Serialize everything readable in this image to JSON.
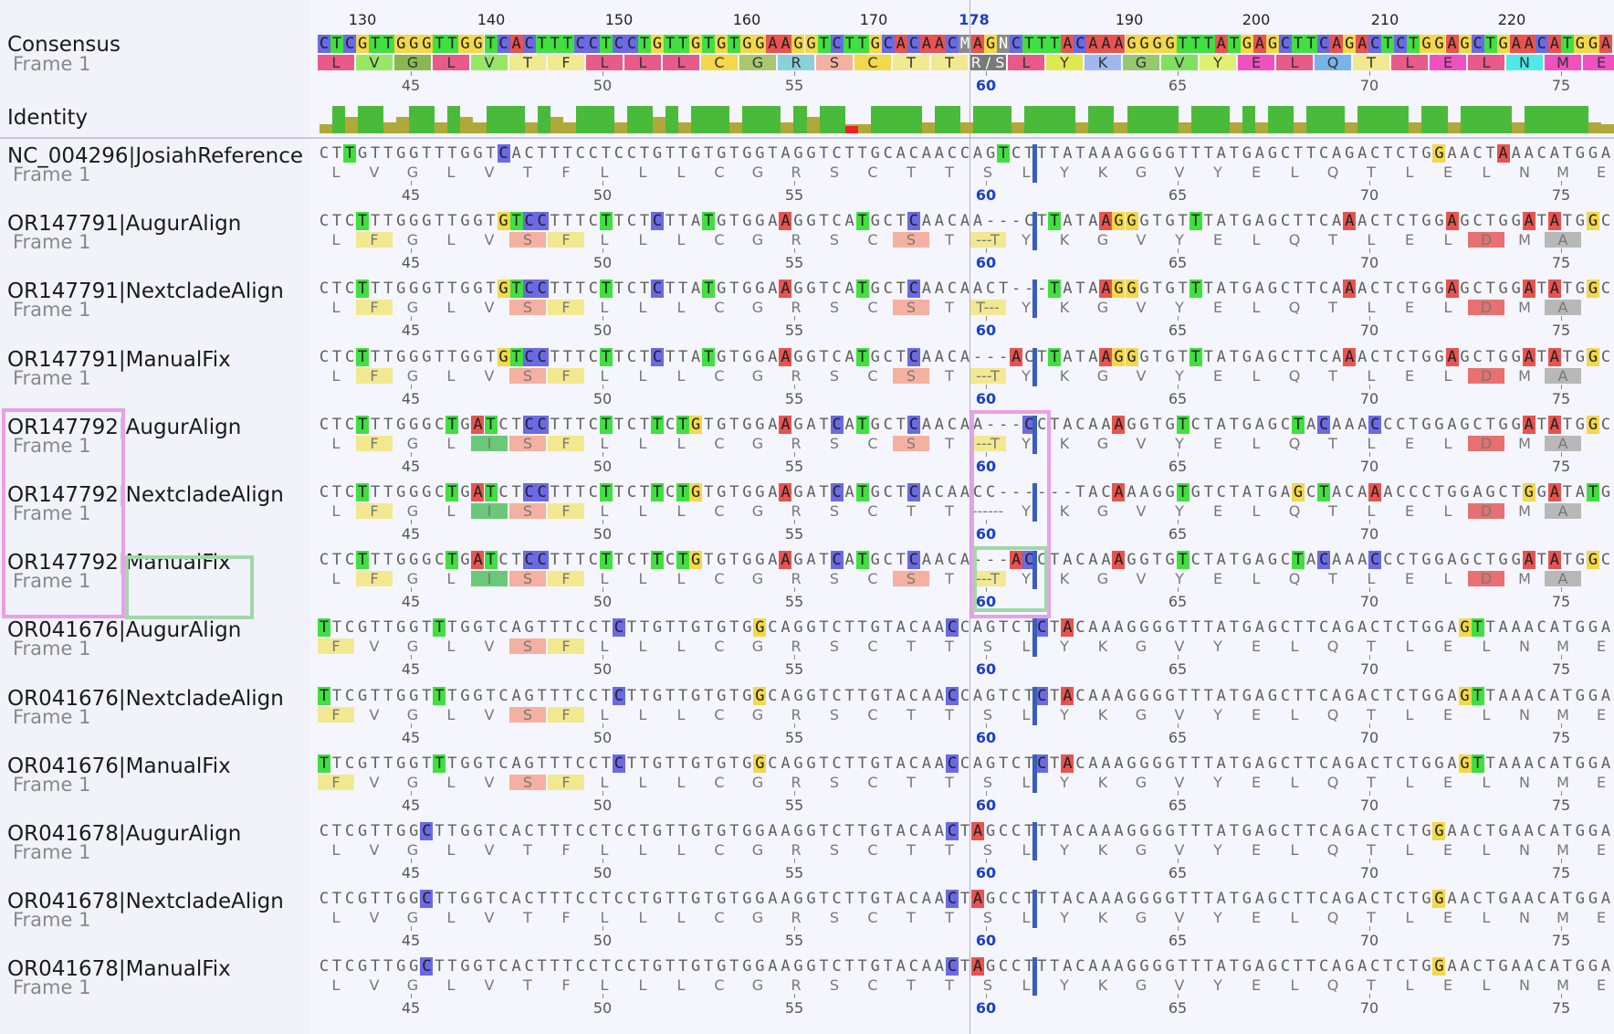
{
  "panels": {
    "consensus_label": "Consensus",
    "frame_label": "Frame 1",
    "identity_label": "Identity"
  },
  "ruler": {
    "labels": [
      "130",
      "140",
      "150",
      "160",
      "170",
      "178",
      "190",
      "200",
      "210",
      "220"
    ],
    "highlight": "178"
  },
  "consensus": {
    "nt": "CTCGTTGGGTTGGTCACTTTCCTCCTGTTGTGTGGAAGGTCTTGCACAACMAGNCTTTACAAAGGGGTTTATGAGCTTCAGACTCTGGAGCTGAACATGGA",
    "aa": [
      "L",
      "V",
      "G",
      "L",
      "V",
      "T",
      "F",
      "L",
      "L",
      "L",
      "C",
      "G",
      "R",
      "S",
      "C",
      "T",
      "T",
      "R / S",
      "L",
      "Y",
      "K",
      "G",
      "V",
      "Y",
      "E",
      "L",
      "Q",
      "T",
      "L",
      "E",
      "L",
      "N",
      "M",
      "E"
    ],
    "aa_numbers": [
      "45",
      "50",
      "55",
      "60",
      "65",
      "70",
      "75"
    ]
  },
  "colors": {
    "A": "#e8534f",
    "C": "#6a6ae6",
    "G": "#f2d84a",
    "T": "#3fe03f",
    "N": "#8a8a8a",
    "M": "#8a8a8a",
    "cursor": "#3a5fb8",
    "box_pink": "#e8a0e8",
    "box_green": "#a0d8a8"
  },
  "rows": [
    {
      "name": "NC_004296|JosiahReference",
      "frame": "Frame 1",
      "nt": "CTTGTTGGTTTGGTCACTTTCCTCCTGTTGTGTGGTAGGTCTTGCACAACCAGTCTTTATAAAGGGGTTTATGAGCTTCAGACTCTGGAACTAAACATGGAG",
      "aa": [
        "L",
        "V",
        "G",
        "L",
        "V",
        "T",
        "F",
        "L",
        "L",
        "L",
        "C",
        "G",
        "R",
        "S",
        "C",
        "T",
        "T",
        "S",
        "L",
        "Y",
        "K",
        "G",
        "V",
        "Y",
        "E",
        "L",
        "Q",
        "T",
        "L",
        "E",
        "L",
        "N",
        "M",
        "E"
      ],
      "aa_numbers": [
        "45",
        "50",
        "55",
        "60",
        "65",
        "70",
        "75"
      ]
    },
    {
      "name": "OR147791|AugurAlign",
      "frame": "Frame 1",
      "nt": "CTCTTTGGGTTGGTGTCCTTTCTTCTCTTATGTGGAAGGTCATGCTCAACAA---CTTATAAGGGTGTTTATGAGCTTCAAACTCTGGAGCTGGATATGGC",
      "aa": [
        "L",
        "F",
        "G",
        "L",
        "V",
        "S",
        "F",
        "L",
        "L",
        "L",
        "C",
        "G",
        "R",
        "S",
        "C",
        "S",
        "T",
        "---T",
        "Y",
        "K",
        "G",
        "V",
        "Y",
        "E",
        "L",
        "Q",
        "T",
        "L",
        "E",
        "L",
        "D",
        "M",
        "A"
      ],
      "aa_numbers": [
        "45",
        "50",
        "55",
        "60",
        "65",
        "70",
        "75"
      ]
    },
    {
      "name": "OR147791|NextcladeAlign",
      "frame": "Frame 1",
      "nt": "CTCTTTGGGTTGGTGTCCTTTCTTCTCTTATGTGGAAGGTCATGCTCAACAACT---TATAAGGGTGTTTATGAGCTTCAAACTCTGGAGCTGGATATGGC",
      "aa": [
        "L",
        "F",
        "G",
        "L",
        "V",
        "S",
        "F",
        "L",
        "L",
        "L",
        "C",
        "G",
        "R",
        "S",
        "C",
        "S",
        "T",
        "T---",
        "Y",
        "K",
        "G",
        "V",
        "Y",
        "E",
        "L",
        "Q",
        "T",
        "L",
        "E",
        "L",
        "D",
        "M",
        "A"
      ],
      "aa_numbers": [
        "45",
        "50",
        "55",
        "60",
        "65",
        "70",
        "75"
      ]
    },
    {
      "name": "OR147791|ManualFix",
      "frame": "Frame 1",
      "nt": "CTCTTTGGGTTGGTGTCCTTTCTTCTCTTATGTGGAAGGTCATGCTCAACA---ACTTATAAGGGTGTTTATGAGCTTCAAACTCTGGAGCTGGATATGGC",
      "aa": [
        "L",
        "F",
        "G",
        "L",
        "V",
        "S",
        "F",
        "L",
        "L",
        "L",
        "C",
        "G",
        "R",
        "S",
        "C",
        "S",
        "T",
        "---T",
        "Y",
        "K",
        "G",
        "V",
        "Y",
        "E",
        "L",
        "Q",
        "T",
        "L",
        "E",
        "L",
        "D",
        "M",
        "A"
      ],
      "aa_numbers": [
        "45",
        "50",
        "55",
        "60",
        "65",
        "70",
        "75"
      ]
    },
    {
      "name": "OR147792|AugurAlign",
      "frame": "Frame 1",
      "nt": "CTCTTTGGGCTGATCTCCTTTCTTCTTCTGTGTGGAAGATCATGCTCAACAA---CCTACAAAGGTGTCTATGAGCTACAAACCCTGGAGCTGGATATGGC",
      "aa": [
        "L",
        "F",
        "G",
        "L",
        "I",
        "S",
        "F",
        "L",
        "L",
        "L",
        "C",
        "G",
        "R",
        "S",
        "C",
        "S",
        "T",
        "---T",
        "Y",
        "K",
        "G",
        "V",
        "Y",
        "E",
        "L",
        "Q",
        "T",
        "L",
        "E",
        "L",
        "D",
        "M",
        "A"
      ],
      "aa_numbers": [
        "45",
        "50",
        "55",
        "60",
        "65",
        "70",
        "75"
      ]
    },
    {
      "name": "OR147792|NextcladeAlign",
      "frame": "Frame 1",
      "nt": "CTCTTTGGGCTGATCTCCTTTCTTCTTCTGTGTGGAAGATCATGCTCACAACC------TACAAAGGTGTCTATGAGCTACAAACCCTGGAGCTGGATATGGC",
      "aa": [
        "L",
        "F",
        "G",
        "L",
        "I",
        "S",
        "F",
        "L",
        "L",
        "L",
        "C",
        "G",
        "R",
        "S",
        "C",
        "T",
        "T",
        "------",
        "Y",
        "K",
        "G",
        "V",
        "Y",
        "E",
        "L",
        "Q",
        "T",
        "L",
        "E",
        "L",
        "D",
        "M",
        "A"
      ],
      "aa_numbers": [
        "45",
        "50",
        "55",
        "60",
        "65",
        "70"
      ]
    },
    {
      "name": "OR147792|ManualFix",
      "frame": "Frame 1",
      "nt": "CTCTTTGGGCTGATCTCCTTTCTTCTTCTGTGTGGAAGATCATGCTCAACA---ACCTACAAAGGTGTCTATGAGCTACAAACCCTGGAGCTGGATATGGC",
      "aa": [
        "L",
        "F",
        "G",
        "L",
        "I",
        "S",
        "F",
        "L",
        "L",
        "L",
        "C",
        "G",
        "R",
        "S",
        "C",
        "S",
        "T",
        "---T",
        "Y",
        "K",
        "G",
        "V",
        "Y",
        "E",
        "L",
        "Q",
        "T",
        "L",
        "E",
        "L",
        "D",
        "M",
        "A"
      ],
      "aa_numbers": [
        "45",
        "50",
        "55",
        "60",
        "65",
        "70",
        "75"
      ]
    },
    {
      "name": "OR041676|AugurAlign",
      "frame": "Frame 1",
      "nt": "TTCGTTGGTTTGGTCAGTTTCCTCTTGTTGTGTGGCAGGTCTTGTACAACCAGTCTCTACAAAGGGGTTTATGAGCTTCAGACTCTGGAGTTAAACATGGAG",
      "aa": [
        "F",
        "V",
        "G",
        "L",
        "V",
        "S",
        "F",
        "L",
        "L",
        "L",
        "C",
        "G",
        "R",
        "S",
        "C",
        "T",
        "T",
        "S",
        "L",
        "Y",
        "K",
        "G",
        "V",
        "Y",
        "E",
        "L",
        "Q",
        "T",
        "L",
        "E",
        "L",
        "N",
        "M",
        "E"
      ],
      "aa_numbers": [
        "45",
        "50",
        "55",
        "60",
        "65",
        "70",
        "75"
      ]
    },
    {
      "name": "OR041676|NextcladeAlign",
      "frame": "Frame 1",
      "nt": "TTCGTTGGTTTGGTCAGTTTCCTCTTGTTGTGTGGCAGGTCTTGTACAACCAGTCTCTACAAAGGGGTTTATGAGCTTCAGACTCTGGAGTTAAACATGGAG",
      "aa": [
        "F",
        "V",
        "G",
        "L",
        "V",
        "S",
        "F",
        "L",
        "L",
        "L",
        "C",
        "G",
        "R",
        "S",
        "C",
        "T",
        "T",
        "S",
        "L",
        "Y",
        "K",
        "G",
        "V",
        "Y",
        "E",
        "L",
        "Q",
        "T",
        "L",
        "E",
        "L",
        "N",
        "M",
        "E"
      ],
      "aa_numbers": [
        "45",
        "50",
        "55",
        "60",
        "65",
        "70",
        "75"
      ]
    },
    {
      "name": "OR041676|ManualFix",
      "frame": "Frame 1",
      "nt": "TTCGTTGGTTTGGTCAGTTTCCTCTTGTTGTGTGGCAGGTCTTGTACAACCAGTCTCTACAAAGGGGTTTATGAGCTTCAGACTCTGGAGTTAAACATGGAG",
      "aa": [
        "F",
        "V",
        "G",
        "L",
        "V",
        "S",
        "F",
        "L",
        "L",
        "L",
        "C",
        "G",
        "R",
        "S",
        "C",
        "T",
        "T",
        "S",
        "L",
        "Y",
        "K",
        "G",
        "V",
        "Y",
        "E",
        "L",
        "Q",
        "T",
        "L",
        "E",
        "L",
        "N",
        "M",
        "E"
      ],
      "aa_numbers": [
        "45",
        "50",
        "55",
        "60",
        "65",
        "70",
        "75"
      ]
    },
    {
      "name": "OR041678|AugurAlign",
      "frame": "Frame 1",
      "nt": "CTCGTTGGCTTGGTCACTTTCCTCCTGTTGTGTGGAAGGTCTTGTACAACTAGCCTTTACAAAGGGGTTTATGAGCTTCAGACTCTGGAACTGAACATGGA",
      "aa": [
        "L",
        "V",
        "G",
        "L",
        "V",
        "T",
        "F",
        "L",
        "L",
        "L",
        "C",
        "G",
        "R",
        "S",
        "C",
        "T",
        "T",
        "S",
        "L",
        "Y",
        "K",
        "G",
        "V",
        "Y",
        "E",
        "L",
        "Q",
        "T",
        "L",
        "E",
        "L",
        "N",
        "M",
        "E"
      ],
      "aa_numbers": [
        "45",
        "50",
        "55",
        "60",
        "65",
        "70",
        "75"
      ]
    },
    {
      "name": "OR041678|NextcladeAlign",
      "frame": "Frame 1",
      "nt": "CTCGTTGGCTTGGTCACTTTCCTCCTGTTGTGTGGAAGGTCTTGTACAACTAGCCTTTACAAAGGGGTTTATGAGCTTCAGACTCTGGAACTGAACATGGA",
      "aa": [
        "L",
        "V",
        "G",
        "L",
        "V",
        "T",
        "F",
        "L",
        "L",
        "L",
        "C",
        "G",
        "R",
        "S",
        "C",
        "T",
        "T",
        "S",
        "L",
        "Y",
        "K",
        "G",
        "V",
        "Y",
        "E",
        "L",
        "Q",
        "T",
        "L",
        "E",
        "L",
        "N",
        "M",
        "E"
      ],
      "aa_numbers": [
        "45",
        "50",
        "55",
        "60",
        "65",
        "70",
        "75"
      ]
    },
    {
      "name": "OR041678|ManualFix",
      "frame": "Frame 1",
      "nt": "CTCGTTGGCTTGGTCACTTTCCTCCTGTTGTGTGGAAGGTCTTGTACAACTAGCCTTTACAAAGGGGTTTATGAGCTTCAGACTCTGGAACTGAACATGGA",
      "aa": [
        "L",
        "V",
        "G",
        "L",
        "V",
        "T",
        "F",
        "L",
        "L",
        "L",
        "C",
        "G",
        "R",
        "S",
        "C",
        "T",
        "T",
        "S",
        "L",
        "Y",
        "K",
        "G",
        "V",
        "Y",
        "E",
        "L",
        "Q",
        "T",
        "L",
        "E",
        "L",
        "N",
        "M",
        "E"
      ],
      "aa_numbers": [
        "45",
        "50",
        "55",
        "60",
        "65",
        "70",
        "75"
      ]
    }
  ]
}
